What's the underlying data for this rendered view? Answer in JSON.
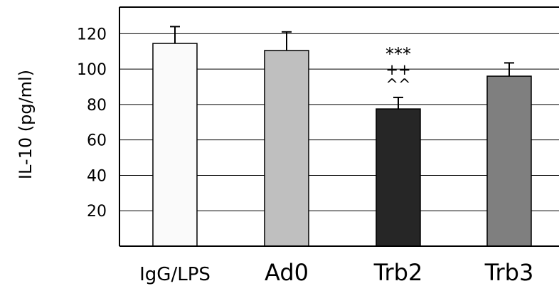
{
  "chart_data": {
    "type": "bar",
    "ylabel": "IL-10 (pg/ml)",
    "xlabel": "",
    "title": "",
    "ylim": [
      0,
      135
    ],
    "yticks": [
      20,
      40,
      60,
      80,
      100,
      120
    ],
    "grid": true,
    "categories": [
      "IgG/LPS",
      "Ad0",
      "Trb2",
      "Trb3"
    ],
    "values": [
      114.5,
      110.5,
      77.5,
      96
    ],
    "errors": [
      9.5,
      10.5,
      6.5,
      7.5
    ],
    "colors": [
      "#fafafa",
      "#bfbfbf",
      "#262626",
      "#7f7f7f"
    ],
    "annotations": [
      {
        "category": "Trb2",
        "lines": [
          "***",
          "++",
          "^^"
        ]
      }
    ]
  }
}
